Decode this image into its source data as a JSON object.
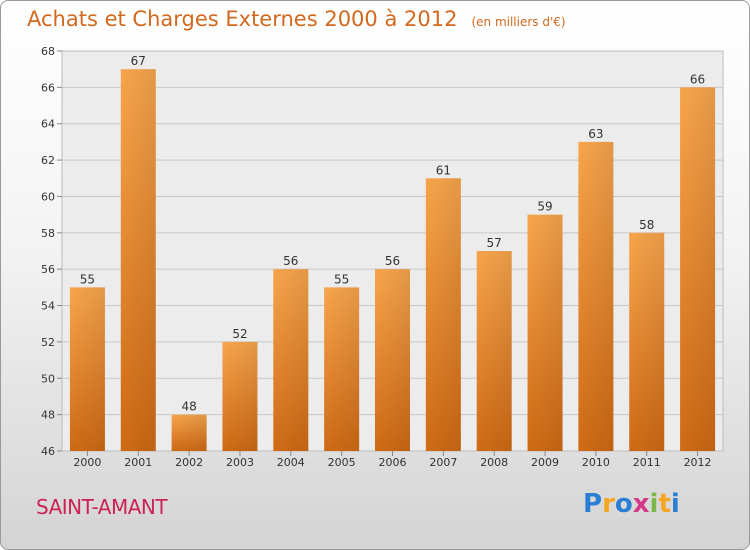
{
  "chart_data": {
    "type": "bar",
    "title": "Achats et Charges Externes 2000 à 2012",
    "subtitle": "(en milliers d'€)",
    "categories": [
      "2000",
      "2001",
      "2002",
      "2003",
      "2004",
      "2005",
      "2006",
      "2007",
      "2008",
      "2009",
      "2010",
      "2011",
      "2012"
    ],
    "values": [
      55,
      67,
      48,
      52,
      56,
      55,
      56,
      61,
      57,
      59,
      63,
      58,
      66
    ],
    "ylim": [
      46,
      68
    ],
    "yticks": [
      46,
      48,
      50,
      52,
      54,
      56,
      58,
      60,
      62,
      64,
      66,
      68
    ],
    "grid": true,
    "bar_color": "#f0922e",
    "xlabel": "",
    "ylabel": ""
  },
  "place": "SAINT-AMANT",
  "logo": {
    "letters": [
      "P",
      "r",
      "o",
      "x",
      "i",
      "t",
      "i"
    ],
    "colors": [
      "#2a7fd4",
      "#f5a623",
      "#2a7fd4",
      "#d43a8a",
      "#7ab648",
      "#f5a623",
      "#2a7fd4"
    ]
  },
  "colors": {
    "title": "#d2691e",
    "place": "#cc2255"
  }
}
